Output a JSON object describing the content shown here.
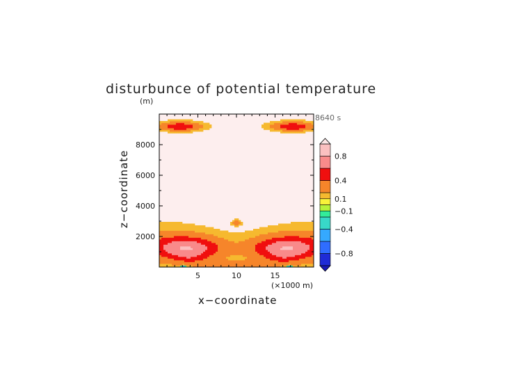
{
  "chart_data": {
    "type": "heatmap",
    "title": "disturbunce of potential temperature",
    "units": "(m)",
    "time_label": "8640 s",
    "xlabel": "x−coordinate",
    "ylabel": "z−coordinate",
    "x_unit_label": "(×1000 m)",
    "xlim": [
      0,
      20
    ],
    "ylim": [
      0,
      10000
    ],
    "x_ticks": [
      "5",
      "10",
      "15"
    ],
    "x_tick_values": [
      5,
      10,
      15
    ],
    "y_ticks": [
      "2000",
      "4000",
      "6000",
      "8000"
    ],
    "y_tick_values": [
      2000,
      4000,
      6000,
      8000
    ],
    "colorbar": {
      "labels": [
        "0.8",
        "0.4",
        "0.1",
        "−0.1",
        "−0.4",
        "−0.8"
      ],
      "label_values": [
        0.8,
        0.4,
        0.1,
        -0.1,
        -0.4,
        -0.8
      ],
      "boundaries": [
        -1.0,
        -0.8,
        -0.6,
        -0.4,
        -0.2,
        -0.1,
        0.0,
        0.1,
        0.2,
        0.4,
        0.6,
        0.8,
        1.0
      ],
      "colors": [
        "#1f2bd6",
        "#2f6dff",
        "#35a9ff",
        "#38d8c8",
        "#33ec9a",
        "#b6f23a",
        "#f8f23a",
        "#f6b92f",
        "#f6852a",
        "#f00f0f",
        "#f98a8a",
        "#fbc0c0"
      ]
    },
    "background_value": 0.05,
    "background_color": "#fdeeee",
    "features": [
      {
        "name": "top-left-cap",
        "x": [
          0.1,
          5.5
        ],
        "z": [
          8800,
          9600
        ],
        "max": 0.6
      },
      {
        "name": "top-right-cap",
        "x": [
          14.5,
          19.9
        ],
        "z": [
          8800,
          9600
        ],
        "max": 0.6
      },
      {
        "name": "central-blob",
        "x": [
          9.6,
          10.4
        ],
        "z": [
          2700,
          3100
        ],
        "max": 0.3
      },
      {
        "name": "lower-left-lobe",
        "x": [
          0,
          9
        ],
        "z": [
          0,
          2600
        ],
        "max": 0.9
      },
      {
        "name": "lower-right-lobe",
        "x": [
          11,
          20
        ],
        "z": [
          0,
          2600
        ],
        "max": 0.9
      }
    ]
  }
}
